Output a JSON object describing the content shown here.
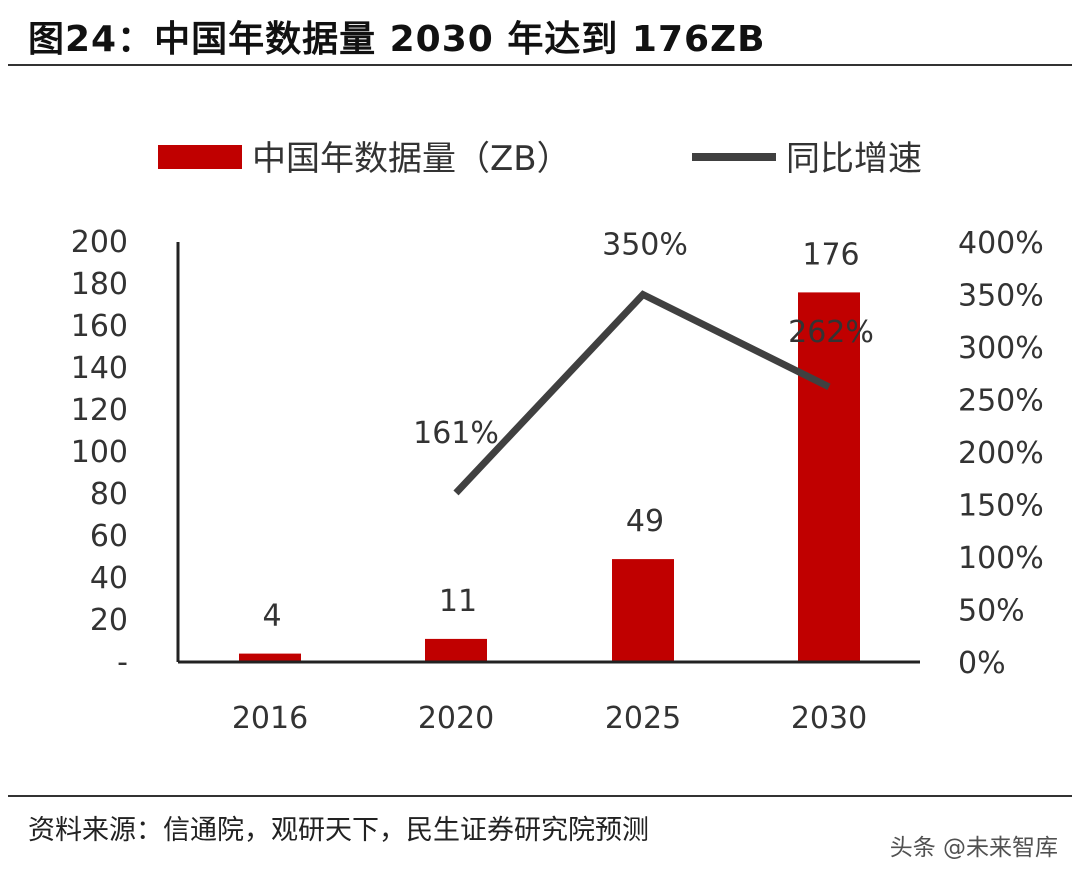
{
  "title": "图24：中国年数据量 2030 年达到 176ZB",
  "source": "资料来源：信通院，观研天下，民生证券研究院预测",
  "watermark": "头条 @未来智库",
  "colors": {
    "bar": "#c00000",
    "line": "#404040",
    "rule": "#333333"
  },
  "chart_data": {
    "type": "bar",
    "categories": [
      "2016",
      "2020",
      "2025",
      "2030"
    ],
    "series": [
      {
        "name": "中国年数据量（ZB）",
        "type": "bar",
        "axis": "left",
        "values": [
          4,
          11,
          49,
          176
        ],
        "data_labels": [
          "4",
          "11",
          "49",
          "176"
        ]
      },
      {
        "name": "同比增速",
        "type": "line",
        "axis": "right",
        "values": [
          null,
          161,
          350,
          262
        ],
        "data_labels": [
          "",
          "161%",
          "350%",
          "262%"
        ]
      }
    ],
    "y_left": {
      "ylim": [
        0,
        200
      ],
      "ticks": [
        "-",
        "20",
        "40",
        "60",
        "80",
        "100",
        "120",
        "140",
        "160",
        "180",
        "200"
      ]
    },
    "y_right": {
      "ylim": [
        0,
        400
      ],
      "ticks": [
        "0%",
        "50%",
        "100%",
        "150%",
        "200%",
        "250%",
        "300%",
        "350%",
        "400%"
      ]
    },
    "legend": "top",
    "grid": false
  }
}
